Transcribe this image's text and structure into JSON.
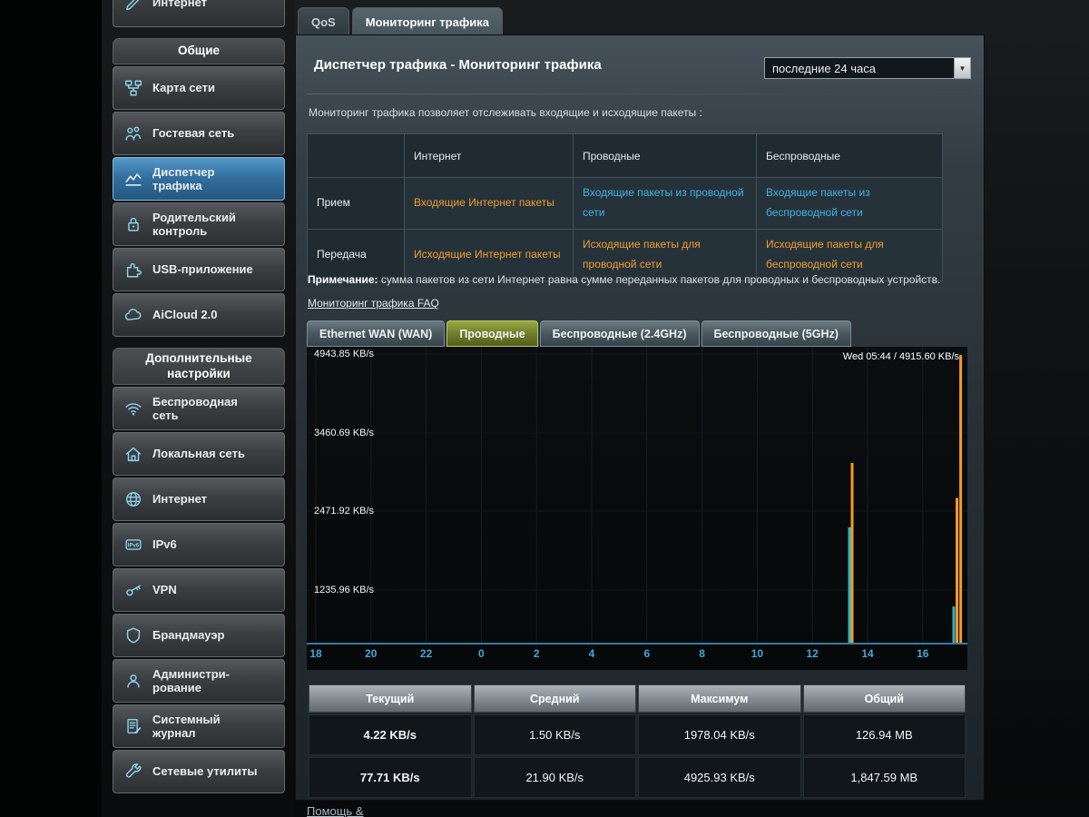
{
  "colors": {
    "accent_blue": "#41b1e1",
    "accent_orange": "#ef9d2e",
    "selected_nav_blue": "#336f9e",
    "selected_chart_tab_olive": "#707e2a",
    "chart_rx": "#2fb4c8",
    "chart_tx": "#f59a23"
  },
  "sidebar": {
    "top_button": {
      "label": "Интернет"
    },
    "sections": [
      {
        "title": "Общие",
        "items": [
          {
            "label": "Карта сети"
          },
          {
            "label": "Гостевая сеть"
          },
          {
            "label": "Диспетчер трафика",
            "selected": true
          },
          {
            "label": "Родительский контроль"
          },
          {
            "label": "USB-приложение"
          },
          {
            "label": "AiCloud 2.0"
          }
        ]
      },
      {
        "title": "Дополнительные настройки",
        "items": [
          {
            "label": "Беспроводная сеть"
          },
          {
            "label": "Локальная сеть"
          },
          {
            "label": "Интернет"
          },
          {
            "label": "IPv6"
          },
          {
            "label": "VPN"
          },
          {
            "label": "Брандмауэр"
          },
          {
            "label": "Администри- рование"
          },
          {
            "label": "Системный журнал"
          },
          {
            "label": "Сетевые утилиты"
          }
        ]
      }
    ]
  },
  "tabs": {
    "qos": "QoS",
    "traffic_monitor": "Мониторинг трафика"
  },
  "header": {
    "title": "Диспетчер трафика - Мониторинг трафика",
    "period_value": "последние  24  часа"
  },
  "intro": "Мониторинг трафика позволяет отслеживать входящие и исходящие пакеты :",
  "packet_table": {
    "col_headers": [
      "Интернет",
      "Проводные",
      "Беспроводные"
    ],
    "rows": [
      {
        "label": "Прием",
        "cells": [
          "Входящие Интернет пакеты",
          "Входящие пакеты из проводной сети",
          "Входящие пакеты из беспроводной сети"
        ]
      },
      {
        "label": "Передача",
        "cells": [
          "Исходящие Интернет пакеты",
          "Исходящие пакеты для проводной сети",
          "Исходящие пакеты для беспроводной сети"
        ]
      }
    ]
  },
  "note": {
    "label": "Примечание:",
    "text": "сумма пакетов из сети Интернет равна сумме переданных пакетов для проводных и беспроводных устройств."
  },
  "faq_link": "Мониторинг трафика FAQ",
  "chart_tabs": [
    "Ethernet WAN (WAN)",
    "Проводные",
    "Беспроводные (2.4GHz)",
    "Беспроводные (5GHz)"
  ],
  "chart_data": {
    "type": "area",
    "title": "",
    "xlabel": "",
    "ylabel": "KB/s",
    "y_max": 4943.85,
    "y_tick_labels": [
      "4943.85 KB/s",
      "3460.69 KB/s",
      "2471.92 KB/s",
      "1235.96 KB/s"
    ],
    "x_ticks": [
      "18",
      "20",
      "22",
      "0",
      "2",
      "4",
      "6",
      "8",
      "10",
      "12",
      "14",
      "16"
    ],
    "cursor_label": "Wed 05:44 / 4915.60 KB/s",
    "grid": true,
    "legend_position": "none",
    "series": [
      {
        "name": "Прием",
        "color": "#2fb4c8",
        "points": [
          {
            "x": 0.8214,
            "kbps": 1978.04
          },
          {
            "x": 0.9794,
            "kbps": 620
          }
        ]
      },
      {
        "name": "Передача",
        "color": "#f59a23",
        "points": [
          {
            "x": 0.8256,
            "kbps": 3080
          },
          {
            "x": 0.9842,
            "kbps": 2480
          },
          {
            "x": 0.9898,
            "kbps": 4925.93
          }
        ]
      }
    ]
  },
  "stats_table": {
    "headers": [
      "Текущий",
      "Средний",
      "Максимум",
      "Общий"
    ],
    "rows": [
      {
        "values": [
          "4.22 KB/s",
          "1.50 KB/s",
          "1978.04 KB/s",
          "126.94 MB"
        ]
      },
      {
        "values": [
          "77.71 KB/s",
          "21.90 KB/s",
          "4925.93 KB/s",
          "1,847.59 MB"
        ]
      }
    ]
  },
  "footer": {
    "help_link": "Помощь &"
  }
}
